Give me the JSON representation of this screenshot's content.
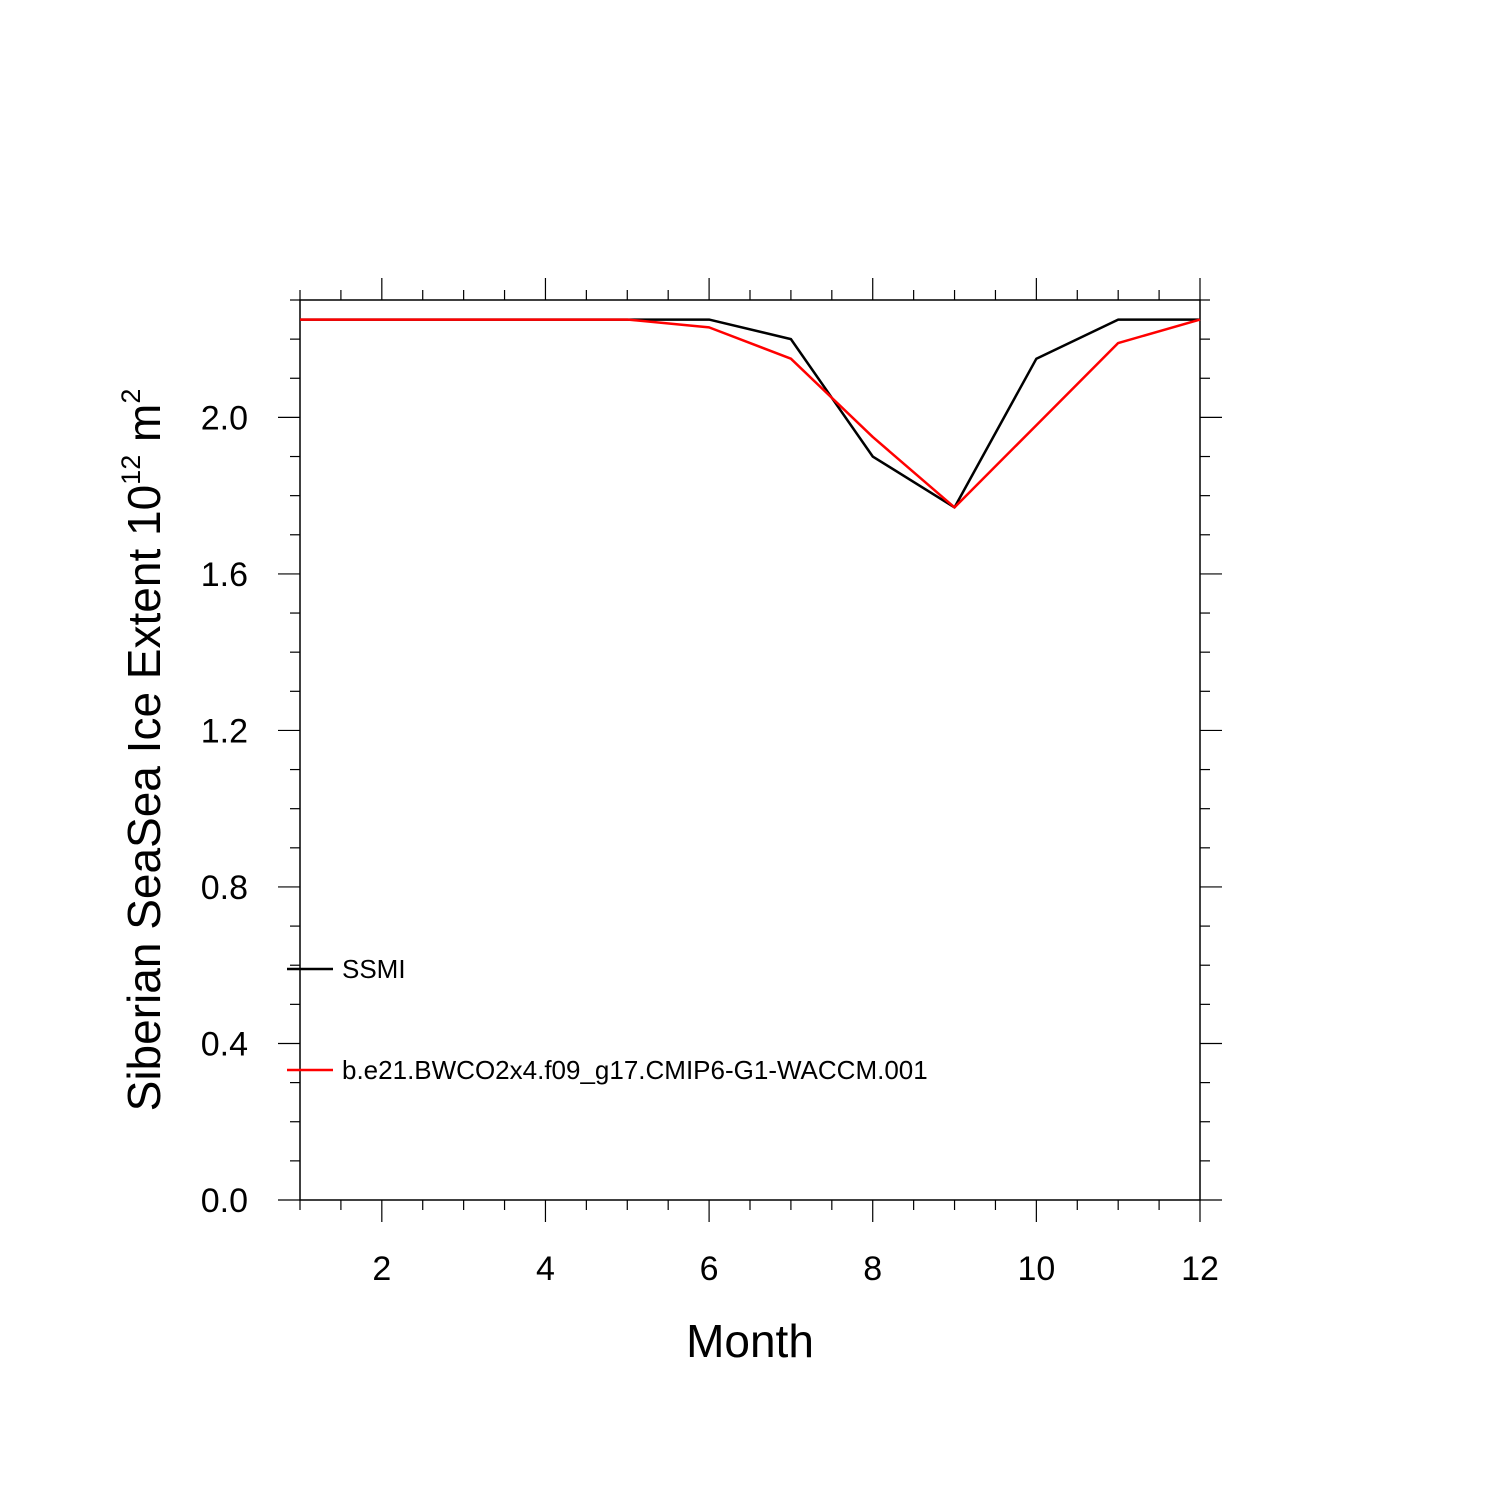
{
  "chart_data": {
    "type": "line",
    "xlabel": "Month",
    "ylabel": {
      "main": "Siberian SeaSea Ice Extent 10",
      "superscript": "12",
      "unit": " m",
      "unit_superscript": "2"
    },
    "xlim": [
      1,
      12
    ],
    "ylim": [
      0,
      2.3
    ],
    "x_ticks": [
      2,
      4,
      6,
      8,
      10,
      12
    ],
    "x_tick_labels": [
      "2",
      "4",
      "6",
      "8",
      "10",
      "12"
    ],
    "y_ticks": [
      0,
      0.4,
      0.8,
      1.2,
      1.6,
      2.0
    ],
    "y_tick_labels": [
      "0.0",
      "0.4",
      "0.8",
      "1.2",
      "1.6",
      "2.0"
    ],
    "grid": false,
    "legend_position": "bottom-left",
    "x": [
      1,
      2,
      3,
      4,
      5,
      6,
      7,
      8,
      9,
      10,
      11,
      12
    ],
    "series": [
      {
        "name": "SSMI",
        "color": "#000000",
        "values": [
          2.25,
          2.25,
          2.25,
          2.25,
          2.25,
          2.25,
          2.2,
          1.9,
          1.77,
          2.15,
          2.25,
          2.25
        ]
      },
      {
        "name": "b.e21.BWCO2x4.f09_g17.CMIP6-G1-WACCM.001",
        "color": "#ff0000",
        "values": [
          2.25,
          2.25,
          2.25,
          2.25,
          2.25,
          2.23,
          2.15,
          1.95,
          1.77,
          1.98,
          2.19,
          2.25
        ]
      }
    ]
  }
}
